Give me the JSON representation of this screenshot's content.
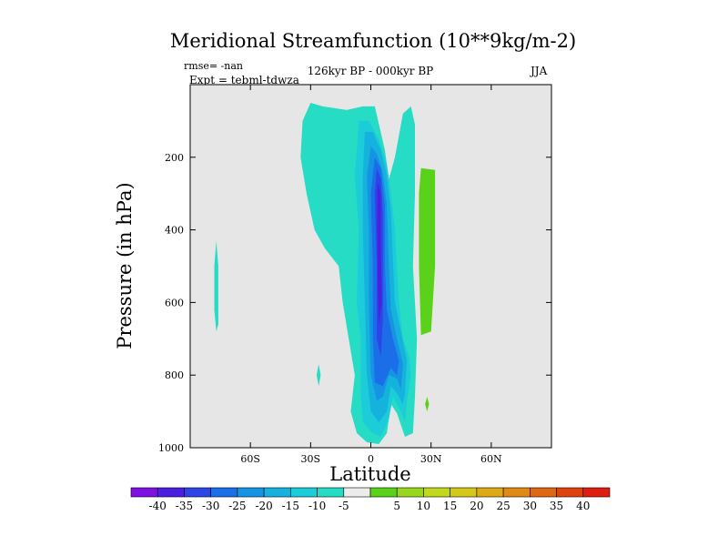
{
  "chart_data": {
    "type": "contour",
    "title": "Meridional Streamfunction (10**9kg/m-2)",
    "rmse_label": "rmse= -nan",
    "expt_label": "Expt = tebml-tdwza",
    "period_label": "126kyr BP - 000kyr BP",
    "season_label": "JJA",
    "xlabel": "Latitude",
    "ylabel": "Pressure (in hPa)",
    "xlim": [
      -90,
      90
    ],
    "ylim": [
      0,
      1000
    ],
    "x_ticks": [
      {
        "value": -60,
        "label": "60S"
      },
      {
        "value": -30,
        "label": "30S"
      },
      {
        "value": 0,
        "label": "0"
      },
      {
        "value": 30,
        "label": "30N"
      },
      {
        "value": 60,
        "label": "60N"
      }
    ],
    "y_ticks": [
      {
        "value": 200,
        "label": "200"
      },
      {
        "value": 400,
        "label": "400"
      },
      {
        "value": 600,
        "label": "600"
      },
      {
        "value": 800,
        "label": "800"
      },
      {
        "value": 1000,
        "label": "1000"
      }
    ],
    "background_color": "#e6e6e6",
    "colorbar": {
      "colors": [
        "#7e10e2",
        "#4c1ee0",
        "#2d44e6",
        "#1b6ee8",
        "#1694e4",
        "#16b2de",
        "#1cccd8",
        "#26dcc4",
        "#ececec",
        "#5ad21a",
        "#98d81c",
        "#c2d81c",
        "#d6c81a",
        "#dcaa16",
        "#de8a14",
        "#de6812",
        "#de4210",
        "#de1e10"
      ],
      "labels": [
        "-40",
        "-35",
        "-30",
        "-25",
        "-20",
        "-15",
        "-10",
        "-5",
        "5",
        "10",
        "15",
        "20",
        "25",
        "30",
        "35",
        "40"
      ]
    },
    "regions": [
      {
        "level": -5,
        "label": "<= -5",
        "points": [
          [
            -30,
            50
          ],
          [
            -24,
            60
          ],
          [
            -12,
            70
          ],
          [
            -4,
            60
          ],
          [
            2,
            60
          ],
          [
            7,
            180
          ],
          [
            9,
            260
          ],
          [
            12,
            200
          ],
          [
            16,
            80
          ],
          [
            20,
            60
          ],
          [
            22,
            110
          ],
          [
            22,
            300
          ],
          [
            21,
            500
          ],
          [
            23,
            700
          ],
          [
            22,
            860
          ],
          [
            21,
            960
          ],
          [
            17,
            970
          ],
          [
            13,
            905
          ],
          [
            10,
            880
          ],
          [
            8,
            960
          ],
          [
            4,
            990
          ],
          [
            -2,
            985
          ],
          [
            -7,
            960
          ],
          [
            -10,
            900
          ],
          [
            -8,
            800
          ],
          [
            -11,
            700
          ],
          [
            -14,
            600
          ],
          [
            -16,
            500
          ],
          [
            -23,
            450
          ],
          [
            -28,
            400
          ],
          [
            -32,
            300
          ],
          [
            -35,
            200
          ],
          [
            -34,
            100
          ]
        ]
      },
      {
        "level": -5,
        "label": "<= -5",
        "points": [
          [
            -77,
            430
          ],
          [
            -76,
            500
          ],
          [
            -76,
            660
          ],
          [
            -77,
            680
          ],
          [
            -78,
            620
          ],
          [
            -78,
            500
          ]
        ]
      },
      {
        "level": -5,
        "label": "<= -5",
        "points": [
          [
            -26,
            770
          ],
          [
            -25,
            800
          ],
          [
            -26,
            830
          ],
          [
            -27,
            800
          ]
        ]
      },
      {
        "level": -10,
        "label": "<= -10",
        "points": [
          [
            -6,
            100
          ],
          [
            -1,
            100
          ],
          [
            4,
            150
          ],
          [
            8,
            220
          ],
          [
            10,
            300
          ],
          [
            12,
            400
          ],
          [
            13,
            500
          ],
          [
            14,
            600
          ],
          [
            16,
            700
          ],
          [
            19,
            750
          ],
          [
            20,
            800
          ],
          [
            18,
            870
          ],
          [
            17,
            930
          ],
          [
            15,
            900
          ],
          [
            11,
            860
          ],
          [
            9,
            920
          ],
          [
            5,
            970
          ],
          [
            1,
            960
          ],
          [
            -4,
            930
          ],
          [
            -5,
            860
          ],
          [
            -5,
            700
          ],
          [
            -7,
            600
          ],
          [
            -6,
            400
          ],
          [
            -8,
            250
          ],
          [
            -7,
            180
          ]
        ]
      },
      {
        "level": -15,
        "label": "<= -15",
        "points": [
          [
            -3,
            130
          ],
          [
            1,
            130
          ],
          [
            5,
            180
          ],
          [
            8,
            250
          ],
          [
            10,
            350
          ],
          [
            11,
            480
          ],
          [
            12,
            600
          ],
          [
            15,
            680
          ],
          [
            18,
            760
          ],
          [
            17,
            850
          ],
          [
            16,
            880
          ],
          [
            13,
            850
          ],
          [
            10,
            830
          ],
          [
            8,
            900
          ],
          [
            4,
            930
          ],
          [
            0,
            900
          ],
          [
            -2,
            800
          ],
          [
            -3,
            600
          ],
          [
            -4,
            400
          ],
          [
            -4,
            250
          ]
        ]
      },
      {
        "level": -20,
        "label": "<= -20",
        "points": [
          [
            0,
            170
          ],
          [
            3,
            190
          ],
          [
            6,
            240
          ],
          [
            8,
            330
          ],
          [
            9,
            500
          ],
          [
            10,
            620
          ],
          [
            13,
            700
          ],
          [
            16,
            770
          ],
          [
            15,
            840
          ],
          [
            13,
            810
          ],
          [
            9,
            800
          ],
          [
            6,
            860
          ],
          [
            3,
            870
          ],
          [
            0,
            800
          ],
          [
            -1,
            600
          ],
          [
            -1,
            400
          ],
          [
            -2,
            250
          ]
        ]
      },
      {
        "level": -25,
        "label": "<= -25",
        "points": [
          [
            2,
            200
          ],
          [
            5,
            230
          ],
          [
            7,
            330
          ],
          [
            7,
            500
          ],
          [
            8,
            620
          ],
          [
            11,
            700
          ],
          [
            14,
            760
          ],
          [
            13,
            800
          ],
          [
            10,
            780
          ],
          [
            6,
            830
          ],
          [
            2,
            820
          ],
          [
            1,
            700
          ],
          [
            1,
            500
          ],
          [
            0,
            300
          ]
        ]
      },
      {
        "level": -30,
        "label": "<= -30",
        "points": [
          [
            3,
            230
          ],
          [
            5,
            260
          ],
          [
            6,
            350
          ],
          [
            6,
            500
          ],
          [
            6,
            650
          ],
          [
            5,
            750
          ],
          [
            3,
            700
          ],
          [
            3,
            500
          ],
          [
            2,
            300
          ]
        ]
      },
      {
        "level": -35,
        "label": "<= -35",
        "points": [
          [
            3.3,
            270
          ],
          [
            5,
            300
          ],
          [
            5,
            450
          ],
          [
            5.5,
            600
          ],
          [
            4,
            660
          ],
          [
            3.5,
            560
          ],
          [
            3.2,
            400
          ]
        ]
      },
      {
        "level": 5,
        "label": ">= 5",
        "points": [
          [
            25,
            230
          ],
          [
            32,
            235
          ],
          [
            32,
            500
          ],
          [
            30,
            680
          ],
          [
            25,
            690
          ],
          [
            24,
            500
          ],
          [
            24,
            300
          ]
        ]
      },
      {
        "level": 5,
        "label": ">= 5",
        "points": [
          [
            28,
            860
          ],
          [
            29,
            880
          ],
          [
            28,
            900
          ],
          [
            27,
            880
          ]
        ]
      }
    ]
  }
}
